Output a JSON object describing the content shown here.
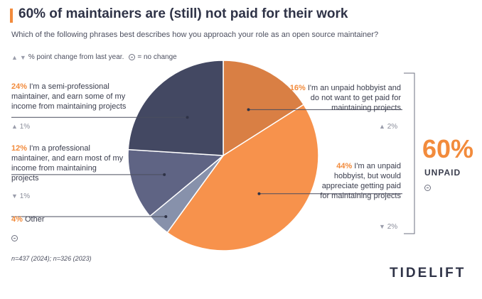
{
  "title": "60% of maintainers are (still) not paid for their work",
  "subtitle": "Which of the following phrases best describes how you approach your role as an open source maintainer?",
  "legend": {
    "text1": "% point change from last year.",
    "text2": "= no change"
  },
  "chart_data": {
    "type": "pie",
    "title": "60% of maintainers are (still) not paid for their work",
    "slices": [
      {
        "key": "hobby_no_pay",
        "pct_text": "16%",
        "value": 16,
        "label": "I'm an unpaid hobbyist and do not want to get paid for maintaining projects",
        "change": "2%",
        "direction": "up",
        "color": "#d97f44"
      },
      {
        "key": "hobby_want_pay",
        "pct_text": "44%",
        "value": 44,
        "label": "I'm an unpaid hobbyist, but would appreciate getting paid for maintaining projects",
        "change": "2%",
        "direction": "down",
        "color": "#f7924c"
      },
      {
        "key": "other",
        "pct_text": "4%",
        "value": 4,
        "label": "Other",
        "change": "",
        "direction": "none",
        "color": "#8791ab"
      },
      {
        "key": "professional",
        "pct_text": "12%",
        "value": 12,
        "label": "I'm a professional maintainer, and earn most of my income from maintaining projects",
        "change": "1%",
        "direction": "down",
        "color": "#5f6484"
      },
      {
        "key": "semi_pro",
        "pct_text": "24%",
        "value": 24,
        "label": "I'm a semi-professional maintainer, and earn some of my income from maintaining projects",
        "change": "1%",
        "direction": "up",
        "color": "#434862"
      }
    ],
    "annotation": {
      "value": "60%",
      "label": "UNPAID",
      "change": "no change"
    }
  },
  "footnote": "n=437 (2024); n=326 (2023)",
  "brand": "TIDELIFT",
  "colors": {
    "accent": "#f28b3c",
    "text": "#3a3d4d",
    "line": "#4a4d5e"
  }
}
